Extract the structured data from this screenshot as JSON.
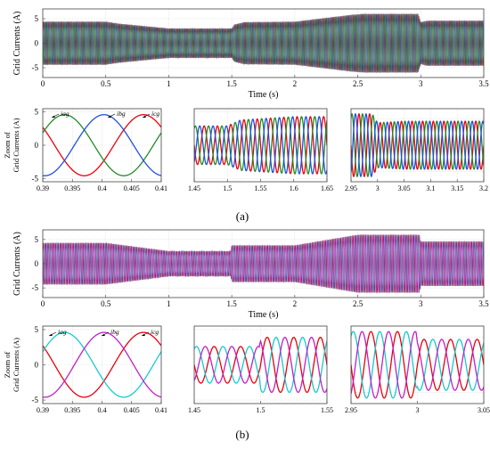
{
  "figure": {
    "label_a": "(a)",
    "label_b": "(b)"
  },
  "chart_data": [
    {
      "id": "a-main",
      "type": "line",
      "panel": "a",
      "xlabel": "Time (s)",
      "ylabel": "Grid Currents (A)",
      "xlim": [
        0,
        3.5
      ],
      "ylim": [
        -7,
        7
      ],
      "grid": true,
      "xticks": [
        "0",
        "0.5",
        "1",
        "1.5",
        "2",
        "2.5",
        "3",
        "3.5"
      ],
      "yticks": [
        "5",
        "0",
        "-5"
      ],
      "freq_hz": 50,
      "colors": [
        "#e8000b",
        "#1f4fe0",
        "#1f8b24"
      ],
      "envelope": {
        "t": [
          0,
          0.5,
          0.6,
          1.0,
          1.5,
          1.52,
          1.6,
          2.0,
          2.45,
          2.55,
          2.98,
          3.0,
          3.05,
          3.5
        ],
        "amp": [
          4.4,
          4.4,
          4.0,
          3.0,
          3.0,
          3.8,
          4.3,
          4.4,
          5.8,
          6.0,
          6.0,
          4.3,
          4.6,
          4.6
        ]
      }
    },
    {
      "id": "a-zoom1",
      "type": "line",
      "panel": "a",
      "ylabel": "Zoom of\nGrid Currents (A)",
      "xlim": [
        0.39,
        0.41
      ],
      "ylim": [
        -5.5,
        5.5
      ],
      "grid": true,
      "xticks": [
        "0.39",
        "0.395",
        "0.4",
        "0.405",
        "0.41"
      ],
      "yticks": [
        "5",
        "0",
        "-5"
      ],
      "freq_hz": 50,
      "colors": [
        "#e8000b",
        "#1f8b24",
        "#1f4fe0"
      ],
      "series": [
        {
          "name": "iag",
          "amplitude": 4.6,
          "phase_deg": -36
        },
        {
          "name": "ibg",
          "amplitude": 4.6,
          "phase_deg": -156
        },
        {
          "name": "icg",
          "amplitude": 4.6,
          "phase_deg": 84
        }
      ],
      "envelope": {
        "t": [
          0.39,
          0.41
        ],
        "amp": [
          4.6,
          4.6
        ]
      },
      "annotations": [
        "iag",
        "ibg",
        "icg"
      ]
    },
    {
      "id": "a-zoom2",
      "type": "line",
      "panel": "a",
      "xlim": [
        1.45,
        1.65
      ],
      "ylim": [
        -5.5,
        5.5
      ],
      "grid": true,
      "xticks": [
        "1.45",
        "1.5",
        "1.55",
        "1.6",
        "1.65"
      ],
      "yticks": [],
      "freq_hz": 50,
      "colors": [
        "#e8000b",
        "#1f8b24",
        "#1f4fe0"
      ],
      "envelope": {
        "t": [
          1.45,
          1.5,
          1.52,
          1.6,
          1.65
        ],
        "amp": [
          2.9,
          2.9,
          3.8,
          4.3,
          4.3
        ]
      }
    },
    {
      "id": "a-zoom3",
      "type": "line",
      "panel": "a",
      "xlim": [
        2.95,
        3.2
      ],
      "ylim": [
        -7,
        7
      ],
      "grid": true,
      "xticks": [
        "2.95",
        "3",
        "3.05",
        "3.1",
        "3.15",
        "3.2"
      ],
      "yticks": [],
      "freq_hz": 50,
      "colors": [
        "#e8000b",
        "#1f8b24",
        "#1f4fe0"
      ],
      "envelope": {
        "t": [
          2.95,
          2.99,
          3.0,
          3.05,
          3.2
        ],
        "amp": [
          6.0,
          6.0,
          4.3,
          4.6,
          4.6
        ]
      }
    },
    {
      "id": "b-main",
      "type": "line",
      "panel": "b",
      "xlabel": "Time (s)",
      "ylabel": "Grid Currents (A)",
      "xlim": [
        0,
        3.5
      ],
      "ylim": [
        -7,
        7
      ],
      "grid": true,
      "xticks": [
        "0",
        "0.5",
        "1",
        "1.5",
        "2",
        "2.5",
        "3",
        "3.5"
      ],
      "yticks": [
        "5",
        "0",
        "-5"
      ],
      "freq_hz": 50,
      "colors": [
        "#e8000b",
        "#17c9cc",
        "#c01fc6"
      ],
      "envelope": {
        "t": [
          0,
          0.5,
          1.0,
          1.49,
          1.5,
          2.0,
          2.5,
          2.99,
          3.0,
          3.5
        ],
        "amp": [
          4.3,
          4.3,
          2.6,
          2.6,
          3.8,
          3.8,
          6.0,
          6.0,
          4.6,
          4.6
        ]
      }
    },
    {
      "id": "b-zoom1",
      "type": "line",
      "panel": "b",
      "ylabel": "Zoom of\nGrid Currents (A)",
      "xlim": [
        0.39,
        0.41
      ],
      "ylim": [
        -5.5,
        5.5
      ],
      "grid": true,
      "xticks": [
        "0.39",
        "0.395",
        "0.4",
        "0.405",
        "0.41"
      ],
      "yticks": [
        "5",
        "0",
        "-5"
      ],
      "freq_hz": 50,
      "colors": [
        "#e8000b",
        "#17c9cc",
        "#c01fc6"
      ],
      "series": [
        {
          "name": "iag",
          "amplitude": 4.6,
          "phase_deg": -36
        },
        {
          "name": "ibg",
          "amplitude": 4.6,
          "phase_deg": -156
        },
        {
          "name": "icg",
          "amplitude": 4.6,
          "phase_deg": 84
        }
      ],
      "envelope": {
        "t": [
          0.39,
          0.41
        ],
        "amp": [
          4.6,
          4.6
        ]
      },
      "annotations": [
        "iag",
        "ibg",
        "icg"
      ]
    },
    {
      "id": "b-zoom2",
      "type": "line",
      "panel": "b",
      "xlim": [
        1.45,
        1.55
      ],
      "ylim": [
        -5.5,
        5.5
      ],
      "grid": true,
      "xticks": [
        "1.45",
        "1.5",
        "1.55"
      ],
      "yticks": [],
      "freq_hz": 50,
      "colors": [
        "#e8000b",
        "#17c9cc",
        "#c01fc6"
      ],
      "envelope": {
        "t": [
          1.45,
          1.499,
          1.5,
          1.55
        ],
        "amp": [
          2.6,
          2.6,
          3.9,
          3.9
        ]
      }
    },
    {
      "id": "b-zoom3",
      "type": "line",
      "panel": "b",
      "xlim": [
        2.95,
        3.05
      ],
      "ylim": [
        -7,
        7
      ],
      "grid": true,
      "xticks": [
        "2.95",
        "3",
        "3.05"
      ],
      "yticks": [],
      "freq_hz": 50,
      "colors": [
        "#e8000b",
        "#17c9cc",
        "#c01fc6"
      ],
      "envelope": {
        "t": [
          2.95,
          2.999,
          3.0,
          3.05
        ],
        "amp": [
          6.0,
          6.0,
          4.6,
          4.6
        ]
      }
    }
  ]
}
